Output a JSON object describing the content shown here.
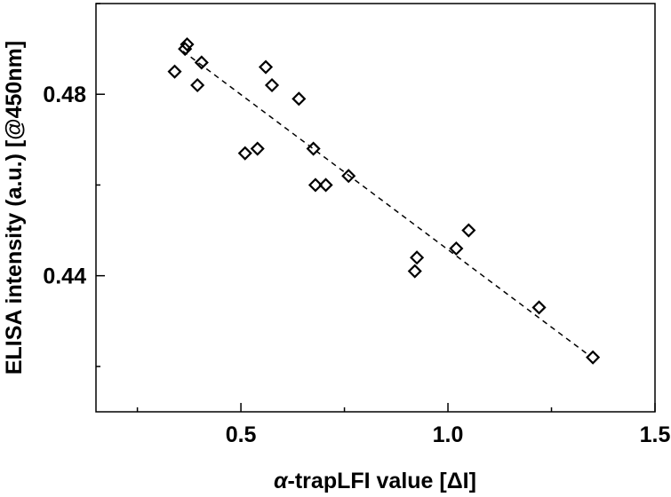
{
  "chart_data": {
    "type": "scatter",
    "title": "",
    "xlabel_prefix": "α",
    "xlabel_rest": "-trapLFI value [ΔI]",
    "ylabel": "ELISA intensity (a.u.) [@450nm]",
    "xlim": [
      0.15,
      1.5
    ],
    "ylim": [
      0.41,
      0.5
    ],
    "xticks": [
      {
        "value": 0.5,
        "label": "0.5"
      },
      {
        "value": 1.0,
        "label": "1.0"
      },
      {
        "value": 1.5,
        "label": "1.5"
      }
    ],
    "xminor_ticks": [
      0.25,
      0.75,
      1.25
    ],
    "yticks": [
      {
        "value": 0.44,
        "label": "0.44"
      },
      {
        "value": 0.48,
        "label": "0.48"
      }
    ],
    "yminor_ticks": [
      0.42,
      0.46,
      0.5
    ],
    "grid": false,
    "marker": "diamond-open",
    "color": "#000000",
    "series": [
      {
        "x": [
          0.34,
          0.365,
          0.37,
          0.395,
          0.405,
          0.51,
          0.54,
          0.56,
          0.575,
          0.64,
          0.675,
          0.68,
          0.705,
          0.76,
          0.92,
          0.925,
          1.02,
          1.05,
          1.22,
          1.35
        ],
        "y": [
          0.485,
          0.49,
          0.491,
          0.482,
          0.487,
          0.467,
          0.468,
          0.486,
          0.482,
          0.479,
          0.468,
          0.46,
          0.46,
          0.462,
          0.441,
          0.444,
          0.446,
          0.45,
          0.433,
          0.422
        ]
      }
    ],
    "fit_line": {
      "style": "dashed",
      "x": [
        0.36,
        1.34
      ],
      "y": [
        0.4895,
        0.4225
      ]
    }
  }
}
